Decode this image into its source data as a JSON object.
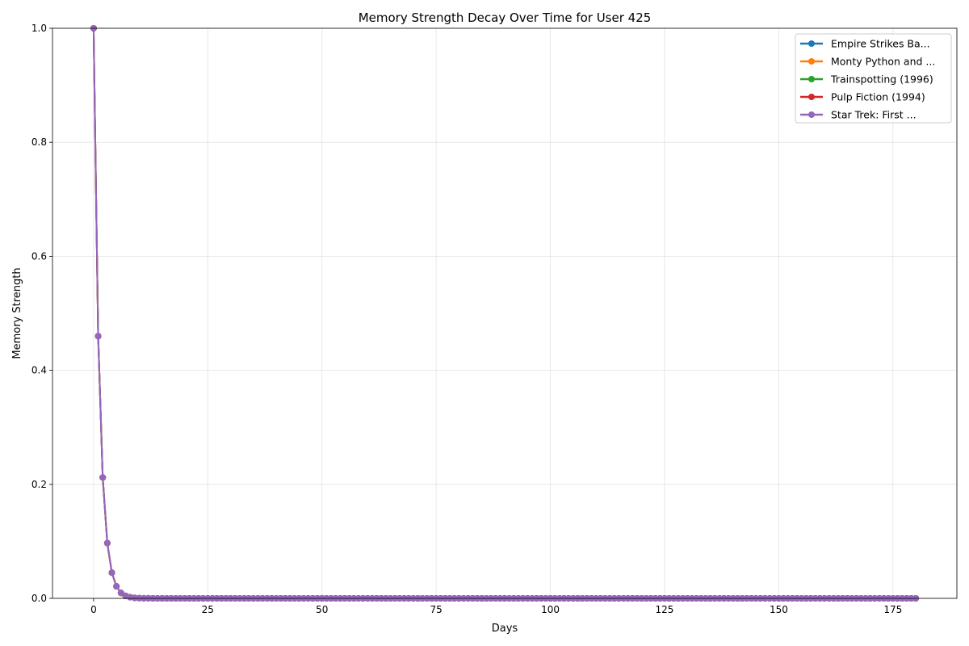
{
  "chart_data": {
    "type": "line",
    "title": "Memory Strength Decay Over Time for User 425",
    "xlabel": "Days",
    "ylabel": "Memory Strength",
    "xlim": [
      -9,
      189
    ],
    "ylim": [
      0,
      1
    ],
    "x_ticks": [
      0,
      25,
      50,
      75,
      100,
      125,
      150,
      175
    ],
    "x_tick_labels": [
      "0",
      "25",
      "50",
      "75",
      "100",
      "125",
      "150",
      "175"
    ],
    "y_ticks": [
      0,
      0.2,
      0.4,
      0.6,
      0.8,
      1.0
    ],
    "y_tick_labels": [
      "0.0",
      "0.2",
      "0.4",
      "0.6",
      "0.8",
      "1.0"
    ],
    "grid": true,
    "legend_position": "top-right",
    "marker": "circle",
    "x_range": [
      0,
      180
    ],
    "x_step": 1,
    "series": [
      {
        "name": "Empire Strikes Ba...",
        "color": "#1f77b4",
        "values": [
          1.0,
          0.46,
          0.212,
          0.097,
          0.045,
          0.021,
          0.0095,
          0.0044,
          0.002,
          0.0009,
          0.0004,
          0.0002,
          0.0001,
          0.0
        ]
      },
      {
        "name": "Monty Python and ...",
        "color": "#ff7f0e",
        "values": [
          1.0,
          0.46,
          0.212,
          0.097,
          0.045,
          0.021,
          0.0095,
          0.0044,
          0.002,
          0.0009,
          0.0004,
          0.0002,
          0.0001,
          0.0
        ]
      },
      {
        "name": "Trainspotting (1996)",
        "color": "#2ca02c",
        "values": [
          1.0,
          0.46,
          0.212,
          0.097,
          0.045,
          0.021,
          0.0095,
          0.0044,
          0.002,
          0.0009,
          0.0004,
          0.0002,
          0.0001,
          0.0
        ]
      },
      {
        "name": "Pulp Fiction (1994)",
        "color": "#d62728",
        "values": [
          1.0,
          0.46,
          0.212,
          0.097,
          0.045,
          0.021,
          0.0095,
          0.0044,
          0.002,
          0.0009,
          0.0004,
          0.0002,
          0.0001,
          0.0
        ]
      },
      {
        "name": "Star Trek: First ...",
        "color": "#9467bd",
        "values": [
          1.0,
          0.46,
          0.212,
          0.097,
          0.045,
          0.021,
          0.0095,
          0.0044,
          0.002,
          0.0009,
          0.0004,
          0.0002,
          0.0001,
          0.0
        ]
      }
    ]
  }
}
